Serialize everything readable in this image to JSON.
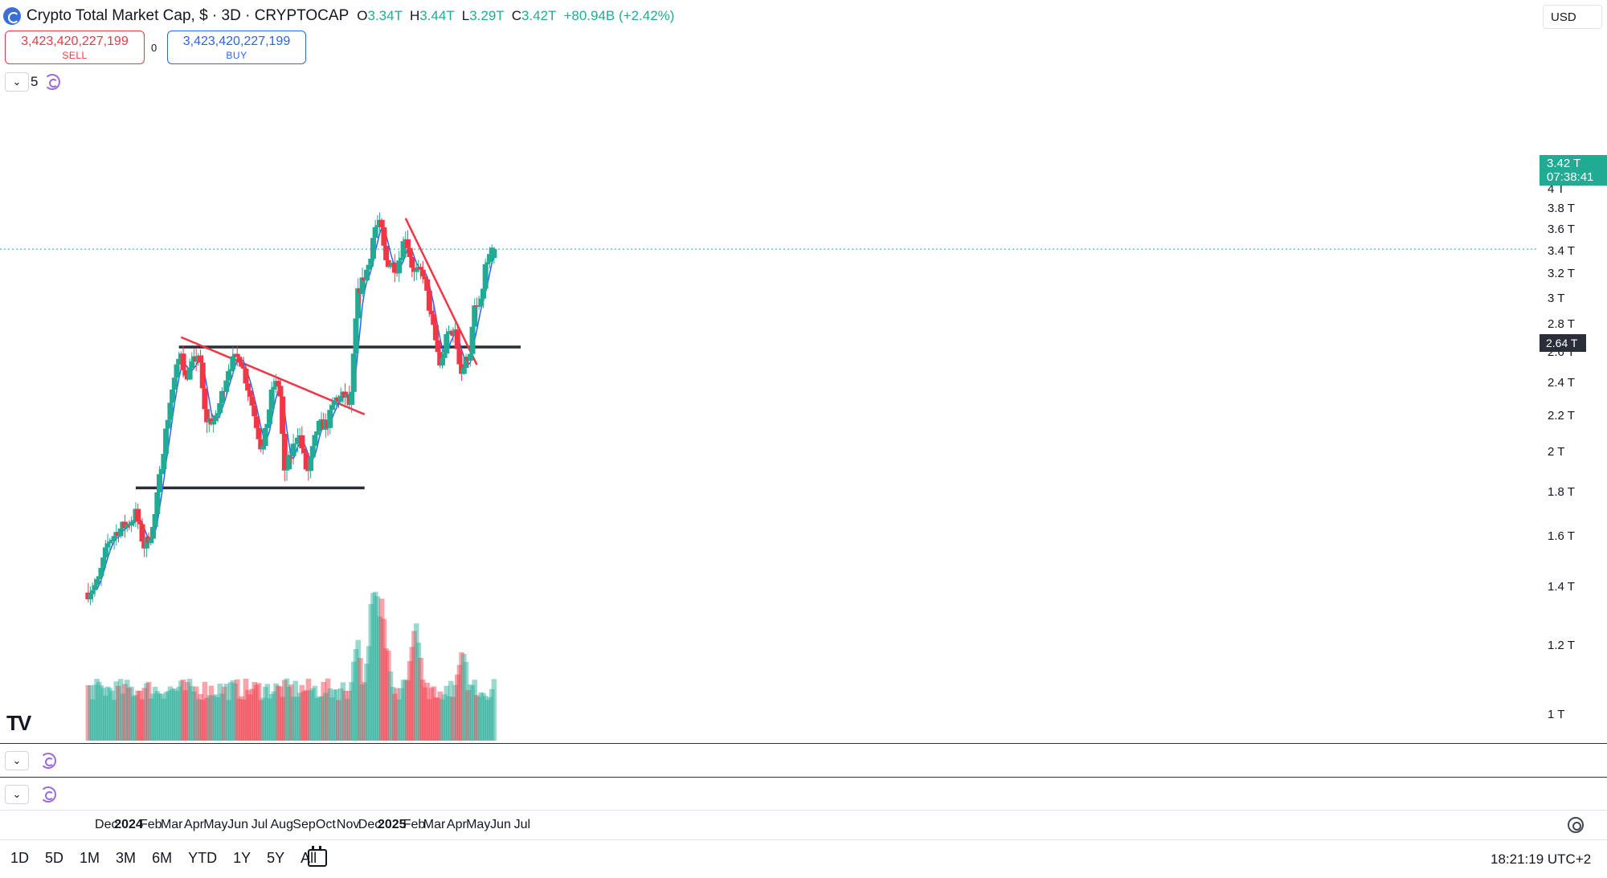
{
  "header": {
    "title": "Crypto Total Market Cap, $ · 3D · CRYPTOCAP",
    "ohlc": [
      {
        "label": "O",
        "value": "3.34T"
      },
      {
        "label": "H",
        "value": "3.44T"
      },
      {
        "label": "L",
        "value": "3.29T"
      },
      {
        "label": "C",
        "value": "3.42T"
      },
      {
        "label": "",
        "value": "+80.94B (+2.42%)"
      }
    ],
    "currency": "USD"
  },
  "trade": {
    "sell_price": "3,423,420,227,199",
    "sell_label": "SELL",
    "spread": "0",
    "buy_price": "3,423,420,227,199",
    "buy_label": "BUY"
  },
  "indicator": {
    "ma_length": "5"
  },
  "price_tag": {
    "price": "3.42 T",
    "countdown": "07:38:41"
  },
  "line_tag": {
    "price": "2.64 T"
  },
  "periods": [
    "1D",
    "5D",
    "1M",
    "3M",
    "6M",
    "YTD",
    "1Y",
    "5Y",
    "All"
  ],
  "clock": "18:21:19 UTC+2",
  "colors": {
    "up": "#22ab94",
    "down": "#f23645",
    "ma": "#2962ff",
    "trendline": "#f23645",
    "level": "#2a2e39"
  },
  "chart_data": {
    "type": "candlestick",
    "symbol": "CRYPTOCAP:TOTAL",
    "interval": "3D",
    "yunit": "T",
    "ylim": [
      0.85,
      4.05
    ],
    "y_ticks": [
      "4 T",
      "3.8 T",
      "3.6 T",
      "3.4 T",
      "3.2 T",
      "3 T",
      "2.8 T",
      "2.6 T",
      "2.4 T",
      "2.2 T",
      "2 T",
      "1.8 T",
      "1.6 T",
      "1.4 T",
      "1.2 T",
      "1 T"
    ],
    "y_tick_values": [
      4.0,
      3.8,
      3.6,
      3.4,
      3.2,
      3.0,
      2.8,
      2.6,
      2.4,
      2.2,
      2.0,
      1.8,
      1.6,
      1.4,
      1.2,
      1.0
    ],
    "x_labels": [
      {
        "text": "Dec",
        "date": "2023-12-01"
      },
      {
        "text": "2024",
        "date": "2024-01-01",
        "bold": true
      },
      {
        "text": "Feb",
        "date": "2024-02-01"
      },
      {
        "text": "Mar",
        "date": "2024-03-01"
      },
      {
        "text": "Apr",
        "date": "2024-04-01"
      },
      {
        "text": "May",
        "date": "2024-05-01"
      },
      {
        "text": "Jun",
        "date": "2024-06-01"
      },
      {
        "text": "Jul",
        "date": "2024-07-01"
      },
      {
        "text": "Aug",
        "date": "2024-08-01"
      },
      {
        "text": "Sep",
        "date": "2024-09-01"
      },
      {
        "text": "Oct",
        "date": "2024-10-01"
      },
      {
        "text": "Nov",
        "date": "2024-11-01"
      },
      {
        "text": "Dec",
        "date": "2024-12-01"
      },
      {
        "text": "2025",
        "date": "2025-01-01",
        "bold": true
      },
      {
        "text": "Feb",
        "date": "2025-02-01"
      },
      {
        "text": "Mar",
        "date": "2025-03-01"
      },
      {
        "text": "Apr",
        "date": "2025-04-01"
      },
      {
        "text": "May",
        "date": "2025-05-01"
      },
      {
        "text": "Jun",
        "date": "2025-06-01"
      },
      {
        "text": "Jul",
        "date": "2025-07-01"
      }
    ],
    "price_keypoints": [
      {
        "date": "2023-11-06",
        "close": 1.38
      },
      {
        "date": "2023-11-20",
        "close": 1.42
      },
      {
        "date": "2023-12-04",
        "close": 1.58
      },
      {
        "date": "2023-12-19",
        "close": 1.63
      },
      {
        "date": "2024-01-02",
        "close": 1.66
      },
      {
        "date": "2024-01-11",
        "close": 1.7
      },
      {
        "date": "2024-01-23",
        "close": 1.56
      },
      {
        "date": "2024-02-05",
        "close": 1.64
      },
      {
        "date": "2024-02-15",
        "close": 1.92
      },
      {
        "date": "2024-02-29",
        "close": 2.32
      },
      {
        "date": "2024-03-14",
        "close": 2.62
      },
      {
        "date": "2024-03-20",
        "close": 2.43
      },
      {
        "date": "2024-04-08",
        "close": 2.6
      },
      {
        "date": "2024-04-17",
        "close": 2.18
      },
      {
        "date": "2024-05-01",
        "close": 2.17
      },
      {
        "date": "2024-05-20",
        "close": 2.52
      },
      {
        "date": "2024-06-04",
        "close": 2.58
      },
      {
        "date": "2024-06-24",
        "close": 2.22
      },
      {
        "date": "2024-07-05",
        "close": 2.0
      },
      {
        "date": "2024-07-20",
        "close": 2.38
      },
      {
        "date": "2024-07-29",
        "close": 2.4
      },
      {
        "date": "2024-08-05",
        "close": 1.88
      },
      {
        "date": "2024-08-24",
        "close": 2.12
      },
      {
        "date": "2024-09-06",
        "close": 1.88
      },
      {
        "date": "2024-09-20",
        "close": 2.14
      },
      {
        "date": "2024-10-04",
        "close": 2.16
      },
      {
        "date": "2024-10-14",
        "close": 2.3
      },
      {
        "date": "2024-10-30",
        "close": 2.32
      },
      {
        "date": "2024-11-05",
        "close": 2.24
      },
      {
        "date": "2024-11-14",
        "close": 3.02
      },
      {
        "date": "2024-12-01",
        "close": 3.3
      },
      {
        "date": "2024-12-08",
        "close": 3.62
      },
      {
        "date": "2024-12-17",
        "close": 3.64
      },
      {
        "date": "2024-12-23",
        "close": 3.32
      },
      {
        "date": "2025-01-08",
        "close": 3.26
      },
      {
        "date": "2025-01-20",
        "close": 3.55
      },
      {
        "date": "2025-02-01",
        "close": 3.2
      },
      {
        "date": "2025-02-13",
        "close": 3.22
      },
      {
        "date": "2025-02-26",
        "close": 2.82
      },
      {
        "date": "2025-03-10",
        "close": 2.5
      },
      {
        "date": "2025-03-20",
        "close": 2.74
      },
      {
        "date": "2025-03-29",
        "close": 2.76
      },
      {
        "date": "2025-04-08",
        "close": 2.47
      },
      {
        "date": "2025-04-20",
        "close": 2.62
      },
      {
        "date": "2025-04-26",
        "close": 2.91
      },
      {
        "date": "2025-05-05",
        "close": 2.95
      },
      {
        "date": "2025-05-11",
        "close": 3.26
      },
      {
        "date": "2025-05-23",
        "close": 3.42
      }
    ],
    "current_price": 3.42,
    "horizontal_levels": [
      {
        "value": 2.64,
        "from": "2024-03-11",
        "to": "2025-06-29"
      },
      {
        "value": 1.82,
        "from": "2024-01-11",
        "to": "2024-11-24"
      }
    ],
    "trendlines": [
      {
        "from": {
          "date": "2024-03-14",
          "value": 2.71
        },
        "to": {
          "date": "2024-11-24",
          "value": 2.21
        }
      },
      {
        "from": {
          "date": "2025-01-20",
          "value": 3.71
        },
        "to": {
          "date": "2025-04-29",
          "value": 2.52
        }
      }
    ],
    "volume_peaks": [
      {
        "date": "2024-11-14",
        "level": 0.6
      },
      {
        "date": "2024-12-08",
        "level": 1.0
      },
      {
        "date": "2024-12-19",
        "level": 0.82
      },
      {
        "date": "2025-02-04",
        "level": 0.75
      },
      {
        "date": "2025-04-08",
        "level": 0.6
      }
    ]
  }
}
